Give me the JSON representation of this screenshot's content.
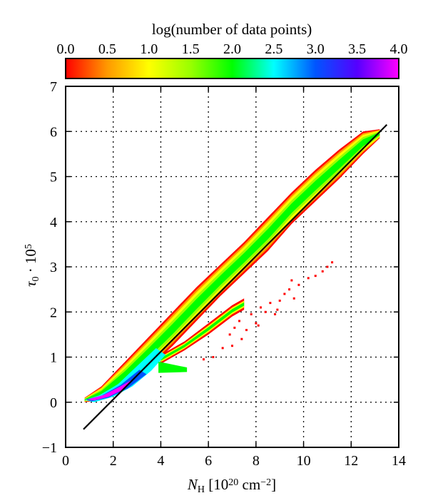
{
  "chart_data": {
    "type": "heatmap",
    "title": "",
    "colorbar": {
      "label": "log(number of data points)",
      "ticks": [
        "0.0",
        "0.5",
        "1.0",
        "1.5",
        "2.0",
        "2.5",
        "3.0",
        "3.5",
        "4.0"
      ],
      "range": [
        0,
        4
      ],
      "stops": [
        {
          "v": 0.0,
          "c": "#ff0000"
        },
        {
          "v": 0.5,
          "c": "#ff9900"
        },
        {
          "v": 1.0,
          "c": "#ffff00"
        },
        {
          "v": 1.5,
          "c": "#99ff00"
        },
        {
          "v": 2.0,
          "c": "#00ff00"
        },
        {
          "v": 2.5,
          "c": "#00ffff"
        },
        {
          "v": 3.0,
          "c": "#0055ff"
        },
        {
          "v": 3.5,
          "c": "#5500ff"
        },
        {
          "v": 4.0,
          "c": "#ff00ff"
        }
      ]
    },
    "xlabel_parts": {
      "sym": "N",
      "sub": "H",
      "bracket_open": " [10",
      "exp": "20",
      "unit": " cm",
      "unit_exp": "−2",
      "bracket_close": "]"
    },
    "ylabel_parts": {
      "sym": "τ",
      "sub": "0",
      "mid": " · 10",
      "exp": "5"
    },
    "xlim": [
      0,
      14
    ],
    "ylim": [
      -1,
      7
    ],
    "xticks": [
      "0",
      "2",
      "4",
      "6",
      "8",
      "10",
      "12",
      "14"
    ],
    "yticks": [
      "−1",
      "0",
      "1",
      "2",
      "3",
      "4",
      "5",
      "6",
      "7"
    ],
    "grid": true,
    "fit_line": {
      "x": [
        0.75,
        13.5
      ],
      "y": [
        -0.6,
        6.15
      ],
      "color": "#000000"
    },
    "main_band": {
      "x": [
        0.8,
        1.5,
        2.5,
        3.5,
        4.5,
        5.5,
        6.5,
        7.5,
        8.5,
        9.5,
        10.5,
        11.5,
        12.5,
        13.2
      ],
      "low": [
        0.0,
        0.05,
        0.3,
        0.75,
        1.25,
        1.8,
        2.35,
        2.85,
        3.35,
        3.95,
        4.45,
        4.95,
        5.5,
        5.85
      ],
      "high": [
        0.1,
        0.35,
        0.9,
        1.45,
        2.0,
        2.55,
        3.05,
        3.55,
        4.1,
        4.65,
        5.15,
        5.6,
        6.0,
        6.05
      ]
    },
    "secondary_branch": {
      "x": [
        4.0,
        5.0,
        6.0,
        7.0,
        7.5
      ],
      "low": [
        0.85,
        1.15,
        1.5,
        1.9,
        2.05
      ],
      "high": [
        1.05,
        1.35,
        1.75,
        2.15,
        2.3
      ]
    },
    "spur": {
      "x": [
        3.9,
        5.1
      ],
      "y": [
        0.75,
        0.72
      ]
    },
    "scatter_outliers": {
      "x": [
        6.9,
        7.1,
        7.3,
        7.6,
        7.8,
        8.0,
        8.2,
        8.4,
        8.6,
        8.8,
        9.0,
        9.2,
        9.4,
        9.6,
        9.8,
        10.2,
        10.5,
        10.8,
        11.0,
        11.2,
        7.0,
        7.4,
        8.1,
        8.9,
        9.5,
        6.6,
        6.2,
        5.8
      ],
      "y": [
        1.5,
        1.65,
        1.8,
        1.6,
        1.95,
        1.75,
        2.1,
        2.0,
        2.2,
        1.95,
        2.25,
        2.4,
        2.5,
        2.3,
        2.6,
        2.75,
        2.8,
        2.9,
        3.0,
        3.1,
        1.25,
        1.4,
        1.7,
        2.05,
        2.7,
        1.2,
        1.0,
        0.95
      ]
    }
  }
}
